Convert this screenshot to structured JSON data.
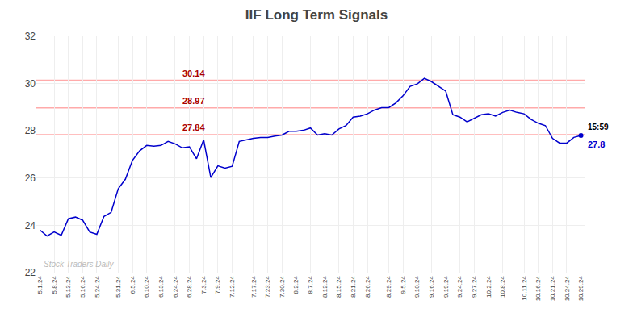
{
  "chart_data": {
    "type": "line",
    "title": "IIF Long Term Signals",
    "categories": [
      "5.1.24",
      null,
      "5.8.24",
      null,
      "5.13.24",
      null,
      "5.16.24",
      null,
      "5.24.24",
      null,
      null,
      "5.31.24",
      null,
      "6.5.24",
      null,
      "6.10.24",
      null,
      "6.13.24",
      null,
      "6.24.24",
      null,
      "6.28.24",
      null,
      "7.3.24",
      null,
      "7.9.24",
      null,
      "7.12.24",
      null,
      null,
      "7.17.24",
      null,
      "7.23.24",
      null,
      "7.30.24",
      null,
      "8.2.24",
      null,
      "8.7.24",
      null,
      "8.12.24",
      null,
      "8.15.24",
      null,
      "8.21.24",
      null,
      "8.26.24",
      null,
      null,
      "8.29.24",
      null,
      "9.5.24",
      null,
      "9.10.24",
      null,
      "9.16.24",
      null,
      "9.19.24",
      null,
      "9.24.24",
      null,
      "9.27.24",
      null,
      "10.2.24",
      null,
      "10.8.24",
      null,
      null,
      "10.11.24",
      null,
      "10.16.24",
      null,
      "10.21.24",
      null,
      "10.24.24",
      null,
      "10.29.24"
    ],
    "values": [
      23.8,
      23.55,
      23.72,
      23.58,
      24.28,
      24.35,
      24.22,
      23.72,
      23.62,
      24.38,
      24.55,
      25.55,
      25.95,
      26.75,
      27.15,
      27.38,
      27.35,
      27.38,
      27.55,
      27.45,
      27.28,
      27.32,
      26.82,
      27.62,
      26.02,
      26.52,
      26.42,
      26.5,
      27.55,
      27.62,
      27.68,
      27.72,
      27.72,
      27.78,
      27.82,
      27.98,
      27.98,
      28.02,
      28.12,
      27.82,
      27.88,
      27.82,
      28.08,
      28.22,
      28.58,
      28.62,
      28.72,
      28.88,
      28.98,
      28.98,
      29.18,
      29.48,
      29.88,
      29.98,
      30.22,
      30.08,
      29.88,
      29.68,
      28.68,
      28.58,
      28.38,
      28.52,
      28.68,
      28.72,
      28.62,
      28.78,
      28.88,
      28.78,
      28.72,
      28.48,
      28.32,
      28.22,
      27.68,
      27.48,
      27.48,
      27.72,
      27.8
    ],
    "color": "#0000cc",
    "ylim": [
      22,
      32
    ],
    "yticks": [
      22,
      24,
      26,
      28,
      30,
      32
    ],
    "grid": true,
    "hlines": [
      {
        "value": 30.14,
        "label": "30.14",
        "color": "#ffaaaa",
        "label_color": "#aa0000"
      },
      {
        "value": 28.97,
        "label": "28.97",
        "color": "#ffaaaa",
        "label_color": "#aa0000"
      },
      {
        "value": 27.84,
        "label": "27.84",
        "color": "#ffaaaa",
        "label_color": "#aa0000"
      }
    ],
    "annotations": [
      "15:59",
      "27.8"
    ],
    "watermark": "Stock Traders Daily"
  }
}
